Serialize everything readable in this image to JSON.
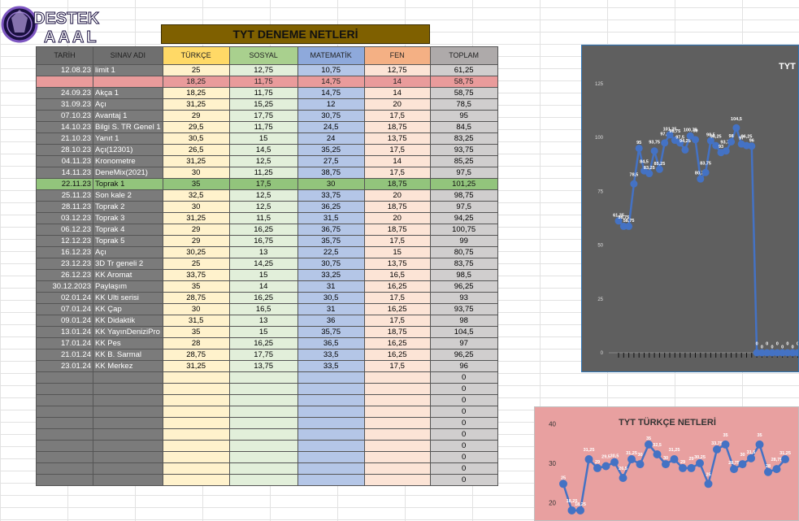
{
  "logo": {
    "line1": "DESTEK",
    "line2": "AAAL"
  },
  "sheet": {
    "title": "TYT DENEME NETLERİ",
    "headers": [
      "TARİH",
      "SINAV ADI",
      "TÜRKÇE",
      "SOSYAL",
      "MATEMATİK",
      "FEN",
      "TOPLAM"
    ],
    "rows": [
      [
        "12.08.23",
        "limit 1",
        "25",
        "12,75",
        "10,75",
        "12,75",
        "61,25"
      ],
      [
        "",
        "",
        "18,25",
        "11,75",
        "14,75",
        "14",
        "58,75"
      ],
      [
        "24.09.23",
        "Akça 1",
        "18,25",
        "11,75",
        "14,75",
        "14",
        "58,75"
      ],
      [
        "31.09.23",
        "Açı",
        "31,25",
        "15,25",
        "12",
        "20",
        "78,5"
      ],
      [
        "07.10.23",
        "Avantaj 1",
        "29",
        "17,75",
        "30,75",
        "17,5",
        "95"
      ],
      [
        "14.10.23",
        "Bilgi S. TR Genel 1",
        "29,5",
        "11,75",
        "24,5",
        "18,75",
        "84,5"
      ],
      [
        "21.10.23",
        "Yanıt 1",
        "30,5",
        "15",
        "24",
        "13,75",
        "83,25"
      ],
      [
        "28.10.23",
        "Açı(12301)",
        "26,5",
        "14,5",
        "35,25",
        "17,5",
        "93,75"
      ],
      [
        "04.11.23",
        "Kronometre",
        "31,25",
        "12,5",
        "27,5",
        "14",
        "85,25"
      ],
      [
        "14.11.23",
        "DeneMix(2021)",
        "30",
        "11,25",
        "38,75",
        "17,5",
        "97,5"
      ],
      [
        "22.11.23",
        "Toprak 1",
        "35",
        "17,5",
        "30",
        "18,75",
        "101,25"
      ],
      [
        "25.11.23",
        "Son kale 2",
        "32,5",
        "12,5",
        "33,75",
        "20",
        "98,75"
      ],
      [
        "28.11.23",
        "Toprak 2",
        "30",
        "12,5",
        "36,25",
        "18,75",
        "97,5"
      ],
      [
        "03.12.23",
        "Toprak 3",
        "31,25",
        "11,5",
        "31,5",
        "20",
        "94,25"
      ],
      [
        "06.12.23",
        "Toprak 4",
        "29",
        "16,25",
        "36,75",
        "18,75",
        "100,75"
      ],
      [
        "12.12.23",
        "Toprak 5",
        "29",
        "16,75",
        "35,75",
        "17,5",
        "99"
      ],
      [
        "16.12.23",
        "Açı",
        "30,25",
        "13",
        "22,5",
        "15",
        "80,75"
      ],
      [
        "23.12.23",
        "3D Tr geneli 2",
        "25",
        "14,25",
        "30,75",
        "13,75",
        "83,75"
      ],
      [
        "26.12.23",
        "KK Aromat",
        "33,75",
        "15",
        "33,25",
        "16,5",
        "98,5"
      ],
      [
        "30.12.2023",
        "Paylaşım",
        "35",
        "14",
        "31",
        "16,25",
        "96,25"
      ],
      [
        "02.01.24",
        "KK Ulti serisi",
        "28,75",
        "16,25",
        "30,5",
        "17,5",
        "93"
      ],
      [
        "07.01.24",
        "KK Çap",
        "30",
        "16,5",
        "31",
        "16,25",
        "93,75"
      ],
      [
        "09.01.24",
        "KK Didaktik",
        "31,5",
        "13",
        "36",
        "17,5",
        "98"
      ],
      [
        "13.01.24",
        "KK YayınDeniziPro",
        "35",
        "15",
        "35,75",
        "18,75",
        "104,5"
      ],
      [
        "17.01.24",
        "KK Pes",
        "28",
        "16,25",
        "36,5",
        "16,25",
        "97"
      ],
      [
        "21.01.24",
        "KK B. Sarmal",
        "28,75",
        "17,75",
        "33,5",
        "16,25",
        "96,25"
      ],
      [
        "23.01.24",
        "KK Merkez",
        "31,25",
        "13,75",
        "33,5",
        "17,5",
        "96"
      ],
      [
        "",
        "",
        "",
        "",
        "",
        "",
        "0"
      ],
      [
        "",
        "",
        "",
        "",
        "",
        "",
        "0"
      ],
      [
        "",
        "",
        "",
        "",
        "",
        "",
        "0"
      ],
      [
        "",
        "",
        "",
        "",
        "",
        "",
        "0"
      ],
      [
        "",
        "",
        "",
        "",
        "",
        "",
        "0"
      ],
      [
        "",
        "",
        "",
        "",
        "",
        "",
        "0"
      ],
      [
        "",
        "",
        "",
        "",
        "",
        "",
        "0"
      ],
      [
        "",
        "",
        "",
        "",
        "",
        "",
        "0"
      ],
      [
        "",
        "",
        "",
        "",
        "",
        "",
        "0"
      ],
      [
        "",
        "",
        "",
        "",
        "",
        "",
        "0"
      ]
    ]
  },
  "chart_data": [
    {
      "type": "line",
      "title": "TYT GE",
      "ylim": [
        0,
        125
      ],
      "yticks": [
        0,
        25,
        50,
        75,
        100,
        125
      ],
      "grid": false,
      "series": [
        {
          "values": [
            61.25,
            58.75,
            58.75,
            78.5,
            95,
            84.5,
            83.25,
            93.75,
            85.25,
            97.5,
            101.25,
            98.75,
            97.5,
            94.25,
            100.75,
            99,
            80.75,
            83.75,
            98.5,
            96.25,
            93,
            93.75,
            98,
            104.5,
            97,
            96.25,
            96,
            0,
            0,
            0,
            0,
            0,
            0,
            0,
            0,
            0,
            0
          ],
          "labels": [
            "61,25",
            "58,75",
            "58,75",
            "78,5",
            "95",
            "84,5",
            "83,25",
            "93,75",
            "85,25",
            "97,5",
            "101,25",
            "98,75",
            "97,5",
            "94,25",
            "100,75",
            "99",
            "80,75",
            "83,75",
            "98,5",
            "96,25",
            "93",
            "93,75",
            "98",
            "104,5",
            "97",
            "96,25",
            "96",
            "0",
            "0",
            "0",
            "0",
            "0",
            "0",
            "0",
            "0",
            "0",
            "0"
          ]
        }
      ]
    },
    {
      "type": "line",
      "title": "TYT TÜRKÇE NETLERİ",
      "ylim": [
        17,
        42
      ],
      "yticks": [
        20,
        30,
        40
      ],
      "grid": false,
      "series": [
        {
          "values": [
            25,
            18.25,
            18.25,
            31.25,
            29,
            29.5,
            30.5,
            26.5,
            31.25,
            30,
            35,
            32.5,
            30,
            31.25,
            29,
            29,
            30.25,
            25,
            33.75,
            35,
            28.75,
            30,
            31.5,
            35,
            28,
            28.75,
            31.25
          ],
          "labels": [
            "25",
            "18,25",
            "18,25",
            "31,25",
            "29",
            "29,5",
            "30,5",
            "26,5",
            "31,25",
            "30",
            "35",
            "32,5",
            "30",
            "31,25",
            "29",
            "29",
            "30,25",
            "25",
            "33,75",
            "35",
            "28,75",
            "30",
            "31,5",
            "35",
            "28",
            "28,75",
            "31,25"
          ]
        }
      ]
    }
  ],
  "colors": {
    "line": "#4472c4",
    "chart1_bg": "#5f5f5f",
    "chart2_bg": "#e8a0a0",
    "title_band": "#7f6000"
  }
}
